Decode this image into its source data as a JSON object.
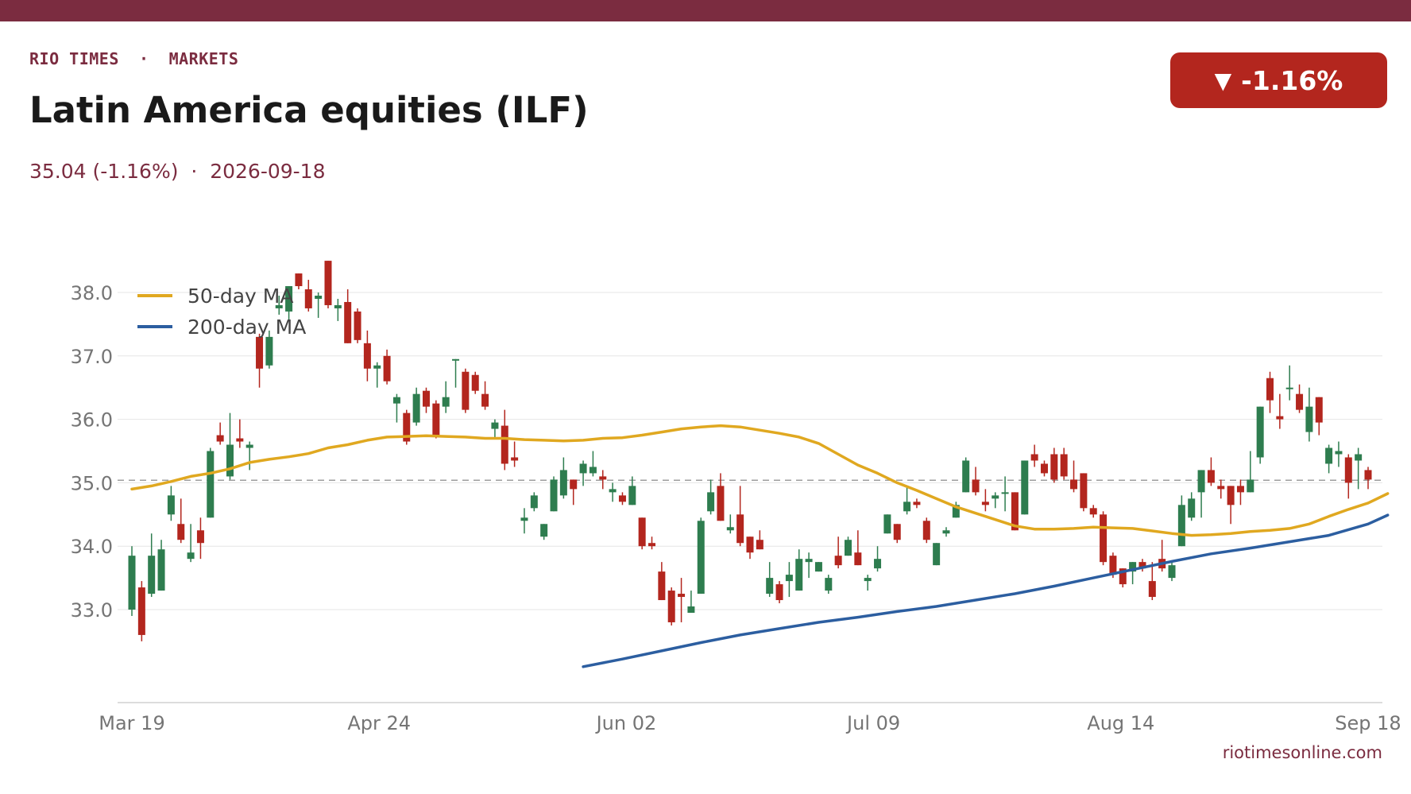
{
  "header": {
    "kicker": "RIO TIMES  ·  MARKETS",
    "title": "Latin America equities (ILF)",
    "subtitle": "35.04 (-1.16%)  ·  2026-09-18",
    "badge_arrow": "▼",
    "badge_value": "-1.16%"
  },
  "source": "riotimesonline.com",
  "colors": {
    "brand": "#7b2c40",
    "badge": "#b3261e",
    "up": "#2e7d4f",
    "down": "#b3261e",
    "ma50": "#e0a820",
    "ma200": "#2c5ea0",
    "reference": "#9e9e9e"
  },
  "chart_data": {
    "type": "candlestick",
    "x_tick_labels": [
      "Mar 19",
      "Apr 24",
      "Jun 02",
      "Jul 09",
      "Aug 14",
      "Sep 18"
    ],
    "y_ticks": [
      33.0,
      34.0,
      35.0,
      36.0,
      37.0,
      38.0
    ],
    "y_tick_labels": [
      "33.0",
      "34.0",
      "35.0",
      "36.0",
      "37.0",
      "38.0"
    ],
    "ylim": [
      32.1,
      38.6
    ],
    "reference_line": 35.04,
    "grid": "horizontal",
    "legend_placement": "top-left",
    "legend": [
      "50-day MA",
      "200-day MA"
    ],
    "candles": [
      {
        "o": 33.0,
        "h": 34.0,
        "l": 32.9,
        "c": 33.85
      },
      {
        "o": 33.35,
        "h": 33.45,
        "l": 32.5,
        "c": 32.6
      },
      {
        "o": 33.25,
        "h": 34.2,
        "l": 33.2,
        "c": 33.85
      },
      {
        "o": 33.3,
        "h": 34.1,
        "l": 33.3,
        "c": 33.95
      },
      {
        "o": 34.5,
        "h": 34.95,
        "l": 34.4,
        "c": 34.8
      },
      {
        "o": 34.35,
        "h": 34.75,
        "l": 34.05,
        "c": 34.1
      },
      {
        "o": 33.8,
        "h": 34.35,
        "l": 33.75,
        "c": 33.9
      },
      {
        "o": 34.25,
        "h": 34.45,
        "l": 33.8,
        "c": 34.05
      },
      {
        "o": 34.45,
        "h": 35.55,
        "l": 34.45,
        "c": 35.5
      },
      {
        "o": 35.75,
        "h": 35.95,
        "l": 35.6,
        "c": 35.65
      },
      {
        "o": 35.1,
        "h": 36.1,
        "l": 35.05,
        "c": 35.6
      },
      {
        "o": 35.7,
        "h": 36.0,
        "l": 35.55,
        "c": 35.65
      },
      {
        "o": 35.55,
        "h": 35.65,
        "l": 35.2,
        "c": 35.6
      },
      {
        "o": 37.3,
        "h": 37.35,
        "l": 36.5,
        "c": 36.8
      },
      {
        "o": 36.85,
        "h": 37.4,
        "l": 36.8,
        "c": 37.3
      },
      {
        "o": 37.75,
        "h": 37.95,
        "l": 37.65,
        "c": 37.8
      },
      {
        "o": 37.7,
        "h": 38.1,
        "l": 37.55,
        "c": 38.1
      },
      {
        "o": 38.3,
        "h": 38.3,
        "l": 38.05,
        "c": 38.1
      },
      {
        "o": 38.05,
        "h": 38.2,
        "l": 37.7,
        "c": 37.75
      },
      {
        "o": 37.9,
        "h": 38.0,
        "l": 37.6,
        "c": 37.95
      },
      {
        "o": 38.5,
        "h": 38.5,
        "l": 37.75,
        "c": 37.8
      },
      {
        "o": 37.75,
        "h": 37.9,
        "l": 37.55,
        "c": 37.8
      },
      {
        "o": 37.85,
        "h": 38.05,
        "l": 37.2,
        "c": 37.2
      },
      {
        "o": 37.7,
        "h": 37.75,
        "l": 37.2,
        "c": 37.25
      },
      {
        "o": 37.2,
        "h": 37.4,
        "l": 36.6,
        "c": 36.8
      },
      {
        "o": 36.8,
        "h": 36.9,
        "l": 36.5,
        "c": 36.85
      },
      {
        "o": 37.0,
        "h": 37.1,
        "l": 36.55,
        "c": 36.6
      },
      {
        "o": 36.25,
        "h": 36.4,
        "l": 35.95,
        "c": 36.35
      },
      {
        "o": 36.1,
        "h": 36.15,
        "l": 35.6,
        "c": 35.65
      },
      {
        "o": 35.95,
        "h": 36.5,
        "l": 35.9,
        "c": 36.4
      },
      {
        "o": 36.45,
        "h": 36.5,
        "l": 36.1,
        "c": 36.2
      },
      {
        "o": 36.25,
        "h": 36.3,
        "l": 35.7,
        "c": 35.75
      },
      {
        "o": 36.2,
        "h": 36.6,
        "l": 36.1,
        "c": 36.35
      },
      {
        "o": 36.95,
        "h": 36.95,
        "l": 36.5,
        "c": 36.95
      },
      {
        "o": 36.75,
        "h": 36.8,
        "l": 36.1,
        "c": 36.15
      },
      {
        "o": 36.7,
        "h": 36.75,
        "l": 36.4,
        "c": 36.45
      },
      {
        "o": 36.4,
        "h": 36.6,
        "l": 36.15,
        "c": 36.2
      },
      {
        "o": 35.85,
        "h": 36.0,
        "l": 35.7,
        "c": 35.95
      },
      {
        "o": 35.9,
        "h": 36.15,
        "l": 35.2,
        "c": 35.3
      },
      {
        "o": 35.4,
        "h": 35.65,
        "l": 35.25,
        "c": 35.35
      },
      {
        "o": 34.4,
        "h": 34.6,
        "l": 34.2,
        "c": 34.45
      },
      {
        "o": 34.6,
        "h": 34.85,
        "l": 34.55,
        "c": 34.8
      },
      {
        "o": 34.15,
        "h": 34.35,
        "l": 34.1,
        "c": 34.35
      },
      {
        "o": 34.55,
        "h": 35.1,
        "l": 34.55,
        "c": 35.05
      },
      {
        "o": 34.8,
        "h": 35.4,
        "l": 34.75,
        "c": 35.2
      },
      {
        "o": 35.05,
        "h": 35.05,
        "l": 34.65,
        "c": 34.9
      },
      {
        "o": 35.15,
        "h": 35.35,
        "l": 34.95,
        "c": 35.3
      },
      {
        "o": 35.15,
        "h": 35.5,
        "l": 35.1,
        "c": 35.25
      },
      {
        "o": 35.1,
        "h": 35.2,
        "l": 34.9,
        "c": 35.05
      },
      {
        "o": 34.85,
        "h": 35.0,
        "l": 34.7,
        "c": 34.9
      },
      {
        "o": 34.8,
        "h": 34.85,
        "l": 34.65,
        "c": 34.7
      },
      {
        "o": 34.65,
        "h": 35.1,
        "l": 34.65,
        "c": 34.95
      },
      {
        "o": 34.45,
        "h": 34.45,
        "l": 33.95,
        "c": 34.0
      },
      {
        "o": 34.05,
        "h": 34.15,
        "l": 33.95,
        "c": 34.0
      },
      {
        "o": 33.6,
        "h": 33.75,
        "l": 33.15,
        "c": 33.15
      },
      {
        "o": 33.3,
        "h": 33.35,
        "l": 32.75,
        "c": 32.8
      },
      {
        "o": 33.25,
        "h": 33.5,
        "l": 32.8,
        "c": 33.2
      },
      {
        "o": 32.95,
        "h": 33.3,
        "l": 32.95,
        "c": 33.05
      },
      {
        "o": 33.25,
        "h": 34.45,
        "l": 33.25,
        "c": 34.4
      },
      {
        "o": 34.55,
        "h": 35.05,
        "l": 34.5,
        "c": 34.85
      },
      {
        "o": 34.95,
        "h": 35.15,
        "l": 34.4,
        "c": 34.4
      },
      {
        "o": 34.25,
        "h": 34.5,
        "l": 34.2,
        "c": 34.3
      },
      {
        "o": 34.5,
        "h": 34.95,
        "l": 34.0,
        "c": 34.05
      },
      {
        "o": 34.15,
        "h": 34.15,
        "l": 33.8,
        "c": 33.9
      },
      {
        "o": 34.1,
        "h": 34.25,
        "l": 33.95,
        "c": 33.95
      },
      {
        "o": 33.25,
        "h": 33.75,
        "l": 33.2,
        "c": 33.5
      },
      {
        "o": 33.4,
        "h": 33.45,
        "l": 33.1,
        "c": 33.15
      },
      {
        "o": 33.45,
        "h": 33.75,
        "l": 33.2,
        "c": 33.55
      },
      {
        "o": 33.3,
        "h": 33.95,
        "l": 33.3,
        "c": 33.8
      },
      {
        "o": 33.75,
        "h": 33.9,
        "l": 33.5,
        "c": 33.8
      },
      {
        "o": 33.6,
        "h": 33.75,
        "l": 33.6,
        "c": 33.75
      },
      {
        "o": 33.3,
        "h": 33.55,
        "l": 33.25,
        "c": 33.5
      },
      {
        "o": 33.85,
        "h": 34.15,
        "l": 33.65,
        "c": 33.7
      },
      {
        "o": 33.85,
        "h": 34.15,
        "l": 33.85,
        "c": 34.1
      },
      {
        "o": 33.9,
        "h": 34.25,
        "l": 33.7,
        "c": 33.7
      },
      {
        "o": 33.45,
        "h": 33.55,
        "l": 33.3,
        "c": 33.5
      },
      {
        "o": 33.65,
        "h": 34.0,
        "l": 33.6,
        "c": 33.8
      },
      {
        "o": 34.2,
        "h": 34.5,
        "l": 34.2,
        "c": 34.5
      },
      {
        "o": 34.35,
        "h": 34.35,
        "l": 34.05,
        "c": 34.1
      },
      {
        "o": 34.55,
        "h": 34.95,
        "l": 34.5,
        "c": 34.7
      },
      {
        "o": 34.7,
        "h": 34.75,
        "l": 34.6,
        "c": 34.65
      },
      {
        "o": 34.4,
        "h": 34.45,
        "l": 34.05,
        "c": 34.1
      },
      {
        "o": 33.7,
        "h": 34.05,
        "l": 33.7,
        "c": 34.05
      },
      {
        "o": 34.2,
        "h": 34.3,
        "l": 34.15,
        "c": 34.25
      },
      {
        "o": 34.45,
        "h": 34.7,
        "l": 34.45,
        "c": 34.65
      },
      {
        "o": 34.85,
        "h": 35.4,
        "l": 34.85,
        "c": 35.35
      },
      {
        "o": 35.05,
        "h": 35.25,
        "l": 34.8,
        "c": 34.85
      },
      {
        "o": 34.7,
        "h": 34.9,
        "l": 34.55,
        "c": 34.65
      },
      {
        "o": 34.75,
        "h": 34.85,
        "l": 34.6,
        "c": 34.8
      },
      {
        "o": 34.85,
        "h": 35.1,
        "l": 34.55,
        "c": 34.85
      },
      {
        "o": 34.85,
        "h": 34.85,
        "l": 34.25,
        "c": 34.25
      },
      {
        "o": 34.5,
        "h": 35.35,
        "l": 34.5,
        "c": 35.35
      },
      {
        "o": 35.45,
        "h": 35.6,
        "l": 35.25,
        "c": 35.35
      },
      {
        "o": 35.3,
        "h": 35.35,
        "l": 35.1,
        "c": 35.15
      },
      {
        "o": 35.45,
        "h": 35.55,
        "l": 35.0,
        "c": 35.05
      },
      {
        "o": 35.45,
        "h": 35.55,
        "l": 35.05,
        "c": 35.1
      },
      {
        "o": 35.05,
        "h": 35.35,
        "l": 34.85,
        "c": 34.9
      },
      {
        "o": 35.15,
        "h": 35.15,
        "l": 34.55,
        "c": 34.6
      },
      {
        "o": 34.6,
        "h": 34.65,
        "l": 34.45,
        "c": 34.5
      },
      {
        "o": 34.5,
        "h": 34.55,
        "l": 33.7,
        "c": 33.75
      },
      {
        "o": 33.85,
        "h": 33.9,
        "l": 33.5,
        "c": 33.55
      },
      {
        "o": 33.65,
        "h": 33.65,
        "l": 33.35,
        "c": 33.4
      },
      {
        "o": 33.6,
        "h": 33.75,
        "l": 33.4,
        "c": 33.75
      },
      {
        "o": 33.75,
        "h": 33.8,
        "l": 33.6,
        "c": 33.65
      },
      {
        "o": 33.45,
        "h": 33.75,
        "l": 33.15,
        "c": 33.2
      },
      {
        "o": 33.8,
        "h": 34.1,
        "l": 33.6,
        "c": 33.65
      },
      {
        "o": 33.5,
        "h": 33.75,
        "l": 33.45,
        "c": 33.7
      },
      {
        "o": 34.0,
        "h": 34.8,
        "l": 34.0,
        "c": 34.65
      },
      {
        "o": 34.45,
        "h": 34.85,
        "l": 34.4,
        "c": 34.75
      },
      {
        "o": 34.85,
        "h": 35.2,
        "l": 34.45,
        "c": 35.2
      },
      {
        "o": 35.2,
        "h": 35.4,
        "l": 34.95,
        "c": 35.0
      },
      {
        "o": 34.95,
        "h": 35.05,
        "l": 34.75,
        "c": 34.9
      },
      {
        "o": 34.95,
        "h": 34.95,
        "l": 34.35,
        "c": 34.65
      },
      {
        "o": 34.95,
        "h": 35.05,
        "l": 34.65,
        "c": 34.85
      },
      {
        "o": 34.85,
        "h": 35.5,
        "l": 34.85,
        "c": 35.05
      },
      {
        "o": 35.4,
        "h": 36.2,
        "l": 35.3,
        "c": 36.2
      },
      {
        "o": 36.65,
        "h": 36.75,
        "l": 36.1,
        "c": 36.3
      },
      {
        "o": 36.05,
        "h": 36.4,
        "l": 35.85,
        "c": 36.0
      },
      {
        "o": 36.5,
        "h": 36.85,
        "l": 36.3,
        "c": 36.5
      },
      {
        "o": 36.4,
        "h": 36.55,
        "l": 36.1,
        "c": 36.15
      },
      {
        "o": 35.8,
        "h": 36.5,
        "l": 35.65,
        "c": 36.2
      },
      {
        "o": 36.35,
        "h": 36.35,
        "l": 35.75,
        "c": 35.95
      },
      {
        "o": 35.3,
        "h": 35.6,
        "l": 35.15,
        "c": 35.55
      },
      {
        "o": 35.45,
        "h": 35.65,
        "l": 35.25,
        "c": 35.5
      },
      {
        "o": 35.4,
        "h": 35.45,
        "l": 34.75,
        "c": 35.0
      },
      {
        "o": 35.35,
        "h": 35.55,
        "l": 34.9,
        "c": 35.45
      },
      {
        "o": 35.2,
        "h": 35.25,
        "l": 34.9,
        "c": 35.05
      }
    ],
    "series": [
      {
        "name": "50-day MA",
        "x": [
          0,
          2,
          4,
          6,
          8,
          10,
          12,
          14,
          16,
          18,
          20,
          22,
          24,
          26,
          28,
          30,
          32,
          34,
          36,
          38,
          40,
          42,
          44,
          46,
          48,
          50,
          52,
          54,
          56,
          58,
          60,
          62,
          64,
          66,
          68,
          70,
          72,
          74,
          76,
          78,
          80,
          82,
          84,
          86,
          88,
          90,
          92,
          94,
          96,
          98,
          100,
          102,
          104,
          106,
          108,
          110,
          112,
          114,
          116,
          118,
          120,
          122,
          124,
          126,
          128
        ],
        "y": [
          34.9,
          34.95,
          35.02,
          35.1,
          35.15,
          35.22,
          35.32,
          35.37,
          35.41,
          35.46,
          35.55,
          35.6,
          35.67,
          35.72,
          35.73,
          35.74,
          35.73,
          35.72,
          35.7,
          35.7,
          35.68,
          35.67,
          35.66,
          35.67,
          35.7,
          35.71,
          35.75,
          35.8,
          35.85,
          35.88,
          35.9,
          35.88,
          35.83,
          35.78,
          35.72,
          35.62,
          35.45,
          35.28,
          35.15,
          35.0,
          34.88,
          34.75,
          34.62,
          34.52,
          34.42,
          34.32,
          34.27,
          34.27,
          34.28,
          34.3,
          34.29,
          34.28,
          34.24,
          34.2,
          34.17,
          34.18,
          34.2,
          34.23,
          34.25,
          34.28,
          34.35,
          34.47,
          34.58,
          34.68,
          34.83
        ]
      },
      {
        "name": "200-day MA",
        "x": [
          46,
          50,
          54,
          58,
          62,
          66,
          70,
          74,
          78,
          82,
          86,
          90,
          94,
          98,
          102,
          106,
          110,
          114,
          118,
          122,
          126,
          128
        ],
        "y": [
          32.1,
          32.22,
          32.35,
          32.48,
          32.6,
          32.7,
          32.8,
          32.88,
          32.97,
          33.05,
          33.15,
          33.25,
          33.37,
          33.5,
          33.63,
          33.76,
          33.88,
          33.97,
          34.07,
          34.17,
          34.35,
          34.49
        ]
      }
    ]
  }
}
